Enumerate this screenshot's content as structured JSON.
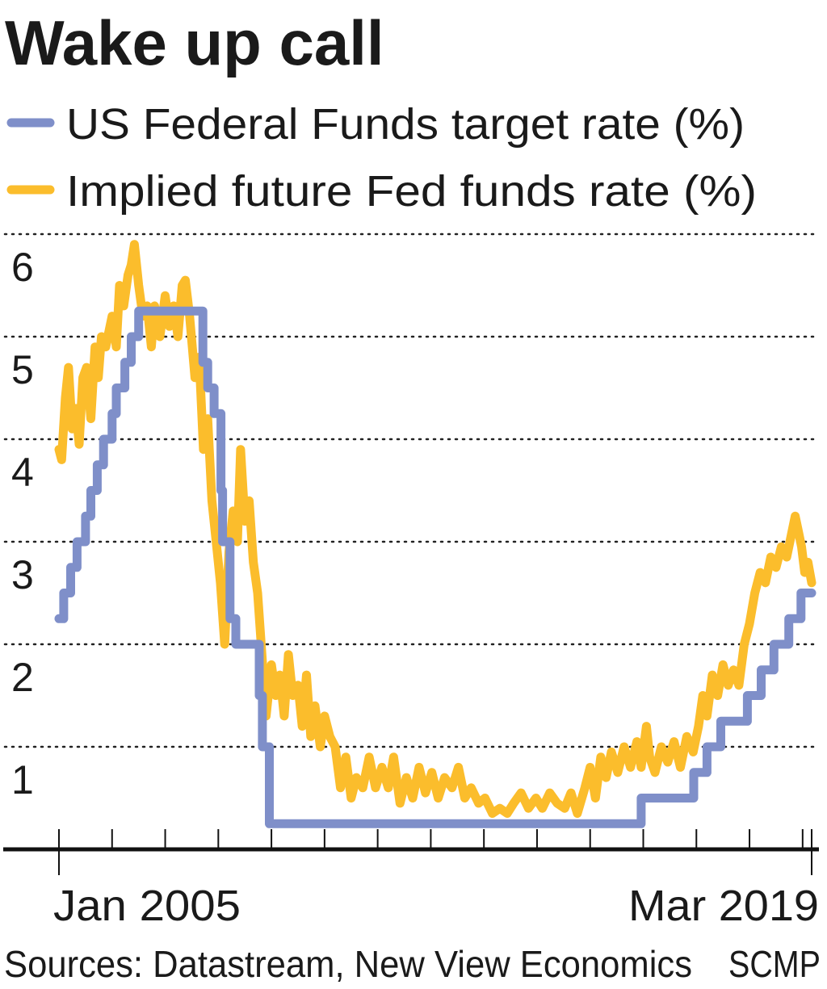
{
  "chart_data": {
    "type": "line",
    "title": "Wake up call",
    "source": "Sources: Datastream, New View Economics",
    "credit": "SCMP",
    "xlabel": "",
    "ylabel": "",
    "x_tick_labels": [
      "Jan 2005",
      "Mar 2019"
    ],
    "xlim": [
      2005.0,
      2019.17
    ],
    "ylim": [
      0,
      6
    ],
    "y_ticks": [
      1,
      2,
      3,
      4,
      5,
      6
    ],
    "grid": "horizontal dotted",
    "legend_placement": "top-left",
    "series": [
      {
        "name": "US Federal Funds target rate (%)",
        "color": "#7f8fc9",
        "step": true,
        "points": [
          [
            2005.0,
            2.25
          ],
          [
            2005.09,
            2.5
          ],
          [
            2005.22,
            2.75
          ],
          [
            2005.34,
            3.0
          ],
          [
            2005.5,
            3.25
          ],
          [
            2005.6,
            3.5
          ],
          [
            2005.72,
            3.75
          ],
          [
            2005.84,
            4.0
          ],
          [
            2006.0,
            4.25
          ],
          [
            2006.08,
            4.5
          ],
          [
            2006.24,
            4.75
          ],
          [
            2006.36,
            5.0
          ],
          [
            2006.5,
            5.25
          ],
          [
            2007.71,
            4.75
          ],
          [
            2007.8,
            4.5
          ],
          [
            2007.92,
            4.25
          ],
          [
            2008.05,
            3.5
          ],
          [
            2008.08,
            3.0
          ],
          [
            2008.22,
            2.25
          ],
          [
            2008.33,
            2.0
          ],
          [
            2008.77,
            1.5
          ],
          [
            2008.83,
            1.0
          ],
          [
            2008.96,
            0.25
          ],
          [
            2015.96,
            0.5
          ],
          [
            2016.95,
            0.75
          ],
          [
            2017.2,
            1.0
          ],
          [
            2017.46,
            1.25
          ],
          [
            2017.96,
            1.5
          ],
          [
            2018.22,
            1.75
          ],
          [
            2018.46,
            2.0
          ],
          [
            2018.74,
            2.25
          ],
          [
            2018.97,
            2.5
          ],
          [
            2019.17,
            2.5
          ]
        ]
      },
      {
        "name": "Implied future Fed funds rate (%)",
        "color": "#fbbd2c",
        "step": false,
        "points": [
          [
            2005.0,
            3.9
          ],
          [
            2005.05,
            3.8
          ],
          [
            2005.12,
            4.4
          ],
          [
            2005.18,
            4.7
          ],
          [
            2005.25,
            4.1
          ],
          [
            2005.32,
            4.3
          ],
          [
            2005.38,
            3.95
          ],
          [
            2005.45,
            4.6
          ],
          [
            2005.52,
            4.7
          ],
          [
            2005.6,
            4.2
          ],
          [
            2005.68,
            4.9
          ],
          [
            2005.74,
            4.6
          ],
          [
            2005.8,
            5.0
          ],
          [
            2005.88,
            4.9
          ],
          [
            2006.0,
            5.2
          ],
          [
            2006.08,
            4.9
          ],
          [
            2006.14,
            5.5
          ],
          [
            2006.22,
            5.3
          ],
          [
            2006.3,
            5.6
          ],
          [
            2006.36,
            5.7
          ],
          [
            2006.42,
            5.9
          ],
          [
            2006.5,
            5.5
          ],
          [
            2006.58,
            5.2
          ],
          [
            2006.66,
            5.3
          ],
          [
            2006.74,
            4.9
          ],
          [
            2006.8,
            5.3
          ],
          [
            2006.9,
            5.0
          ],
          [
            2007.0,
            5.4
          ],
          [
            2007.08,
            5.1
          ],
          [
            2007.16,
            5.3
          ],
          [
            2007.24,
            5.0
          ],
          [
            2007.32,
            5.5
          ],
          [
            2007.38,
            5.55
          ],
          [
            2007.46,
            5.2
          ],
          [
            2007.56,
            4.6
          ],
          [
            2007.64,
            4.8
          ],
          [
            2007.72,
            3.9
          ],
          [
            2007.8,
            4.2
          ],
          [
            2007.88,
            3.4
          ],
          [
            2007.96,
            3.0
          ],
          [
            2008.04,
            2.6
          ],
          [
            2008.12,
            2.0
          ],
          [
            2008.2,
            2.9
          ],
          [
            2008.28,
            3.3
          ],
          [
            2008.36,
            3.0
          ],
          [
            2008.42,
            3.9
          ],
          [
            2008.5,
            3.2
          ],
          [
            2008.58,
            3.4
          ],
          [
            2008.66,
            2.8
          ],
          [
            2008.74,
            2.5
          ],
          [
            2008.82,
            1.9
          ],
          [
            2008.9,
            1.3
          ],
          [
            2009.0,
            1.8
          ],
          [
            2009.08,
            1.5
          ],
          [
            2009.16,
            1.7
          ],
          [
            2009.24,
            1.3
          ],
          [
            2009.32,
            1.9
          ],
          [
            2009.4,
            1.5
          ],
          [
            2009.5,
            1.6
          ],
          [
            2009.58,
            1.2
          ],
          [
            2009.66,
            1.7
          ],
          [
            2009.74,
            1.1
          ],
          [
            2009.82,
            1.4
          ],
          [
            2009.92,
            1.0
          ],
          [
            2010.0,
            1.3
          ],
          [
            2010.1,
            1.1
          ],
          [
            2010.2,
            1.0
          ],
          [
            2010.3,
            0.6
          ],
          [
            2010.4,
            0.9
          ],
          [
            2010.5,
            0.5
          ],
          [
            2010.6,
            0.7
          ],
          [
            2010.72,
            0.6
          ],
          [
            2010.84,
            0.9
          ],
          [
            2010.96,
            0.6
          ],
          [
            2011.08,
            0.8
          ],
          [
            2011.2,
            0.6
          ],
          [
            2011.3,
            0.9
          ],
          [
            2011.42,
            0.45
          ],
          [
            2011.54,
            0.7
          ],
          [
            2011.66,
            0.5
          ],
          [
            2011.78,
            0.8
          ],
          [
            2011.9,
            0.55
          ],
          [
            2012.02,
            0.75
          ],
          [
            2012.14,
            0.5
          ],
          [
            2012.26,
            0.7
          ],
          [
            2012.4,
            0.6
          ],
          [
            2012.52,
            0.8
          ],
          [
            2012.64,
            0.5
          ],
          [
            2012.76,
            0.6
          ],
          [
            2012.9,
            0.45
          ],
          [
            2013.02,
            0.5
          ],
          [
            2013.16,
            0.35
          ],
          [
            2013.3,
            0.4
          ],
          [
            2013.44,
            0.35
          ],
          [
            2013.56,
            0.45
          ],
          [
            2013.7,
            0.55
          ],
          [
            2013.84,
            0.4
          ],
          [
            2013.98,
            0.5
          ],
          [
            2014.1,
            0.4
          ],
          [
            2014.24,
            0.55
          ],
          [
            2014.38,
            0.45
          ],
          [
            2014.52,
            0.4
          ],
          [
            2014.64,
            0.55
          ],
          [
            2014.76,
            0.35
          ],
          [
            2014.9,
            0.6
          ],
          [
            2015.0,
            0.8
          ],
          [
            2015.1,
            0.5
          ],
          [
            2015.2,
            0.9
          ],
          [
            2015.3,
            0.7
          ],
          [
            2015.4,
            0.95
          ],
          [
            2015.52,
            0.75
          ],
          [
            2015.64,
            1.0
          ],
          [
            2015.76,
            0.8
          ],
          [
            2015.88,
            1.05
          ],
          [
            2015.96,
            0.8
          ],
          [
            2016.06,
            1.2
          ],
          [
            2016.12,
            0.9
          ],
          [
            2016.22,
            0.75
          ],
          [
            2016.34,
            1.0
          ],
          [
            2016.46,
            0.85
          ],
          [
            2016.58,
            1.05
          ],
          [
            2016.7,
            0.8
          ],
          [
            2016.82,
            1.1
          ],
          [
            2016.94,
            0.95
          ],
          [
            2017.04,
            1.2
          ],
          [
            2017.12,
            1.5
          ],
          [
            2017.2,
            1.3
          ],
          [
            2017.3,
            1.7
          ],
          [
            2017.4,
            1.5
          ],
          [
            2017.5,
            1.8
          ],
          [
            2017.6,
            1.6
          ],
          [
            2017.7,
            1.75
          ],
          [
            2017.8,
            1.6
          ],
          [
            2017.9,
            2.0
          ],
          [
            2018.0,
            2.2
          ],
          [
            2018.1,
            2.5
          ],
          [
            2018.2,
            2.7
          ],
          [
            2018.3,
            2.6
          ],
          [
            2018.4,
            2.85
          ],
          [
            2018.5,
            2.75
          ],
          [
            2018.6,
            2.95
          ],
          [
            2018.7,
            2.85
          ],
          [
            2018.8,
            3.1
          ],
          [
            2018.86,
            3.25
          ],
          [
            2018.92,
            3.1
          ],
          [
            2018.98,
            2.95
          ],
          [
            2019.04,
            2.7
          ],
          [
            2019.1,
            2.8
          ],
          [
            2019.17,
            2.6
          ]
        ]
      }
    ]
  }
}
